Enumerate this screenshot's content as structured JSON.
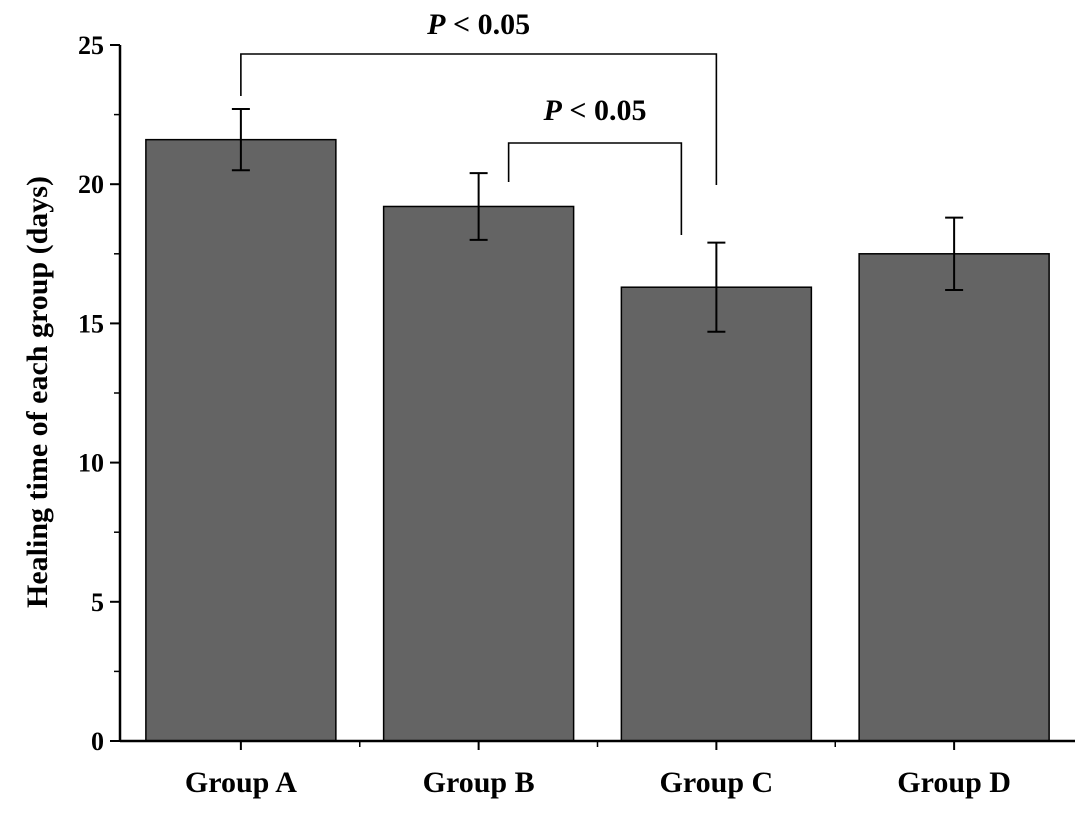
{
  "chart_data": {
    "type": "bar",
    "title": "",
    "xlabel": "",
    "ylabel": "Healing time of each group (days)",
    "categories": [
      "Group A",
      "Group B",
      "Group C",
      "Group D"
    ],
    "values": [
      21.6,
      19.2,
      16.3,
      17.5
    ],
    "errors": [
      1.1,
      1.2,
      1.6,
      1.3
    ],
    "ylim": [
      0,
      25
    ],
    "yticks": [
      "0",
      "5",
      "10",
      "15",
      "20",
      "25"
    ],
    "bar_color": "#646464",
    "grid": false,
    "annotations": [
      {
        "from": "Group A",
        "to": "Group C",
        "label_prefix": "P",
        "label_rest": " < 0.05"
      },
      {
        "from": "Group B",
        "to": "Group C",
        "label_prefix": "P",
        "label_rest": " < 0.05"
      }
    ]
  }
}
